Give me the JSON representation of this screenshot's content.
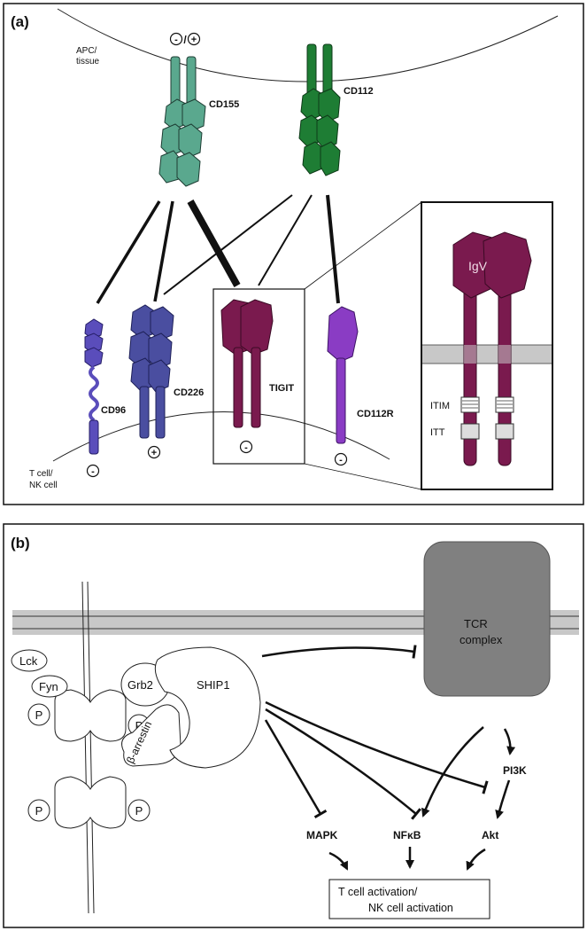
{
  "panel_a": {
    "letter": "(a)",
    "apc_label_line1": "APC/",
    "apc_label_line2": "tissue",
    "tcell_label_line1": "T cell/",
    "tcell_label_line2": "NK cell",
    "cd155_sign": "-/+",
    "cd155_sign_minus": "-",
    "cd155_sign_sep": "/",
    "cd155_sign_plus": "+",
    "ligands": {
      "cd155": "CD155",
      "cd112": "CD112"
    },
    "receptors": {
      "cd96": "CD96",
      "cd226": "CD226",
      "tigit": "TIGIT",
      "cd112r": "CD112R"
    },
    "signs": {
      "cd96": "-",
      "cd226": "+",
      "tigit": "-",
      "cd112r": "-"
    },
    "inset": {
      "igv": "IgV",
      "itim": "ITIM",
      "itt": "ITT"
    },
    "colors": {
      "cd155": "#5aa88e",
      "cd112": "#1e7d34",
      "cd96": "#5a4dbb",
      "cd226": "#4a4ea0",
      "tigit": "#7a1a4e",
      "cd112r": "#8a3cc4"
    }
  },
  "panel_b": {
    "letter": "(b)",
    "lck": "Lck",
    "fyn": "Fyn",
    "p": "P",
    "grb2": "Grb2",
    "beta_arrestin": "β-arrestin",
    "ship1": "SHIP1",
    "tcr_line1": "TCR",
    "tcr_line2": "complex",
    "pi3k": "PI3K",
    "mapk": "MAPK",
    "nfkb": "NFκB",
    "akt": "Akt",
    "outcome_line1": "T cell activation/",
    "outcome_line2": "NK cell activation"
  }
}
